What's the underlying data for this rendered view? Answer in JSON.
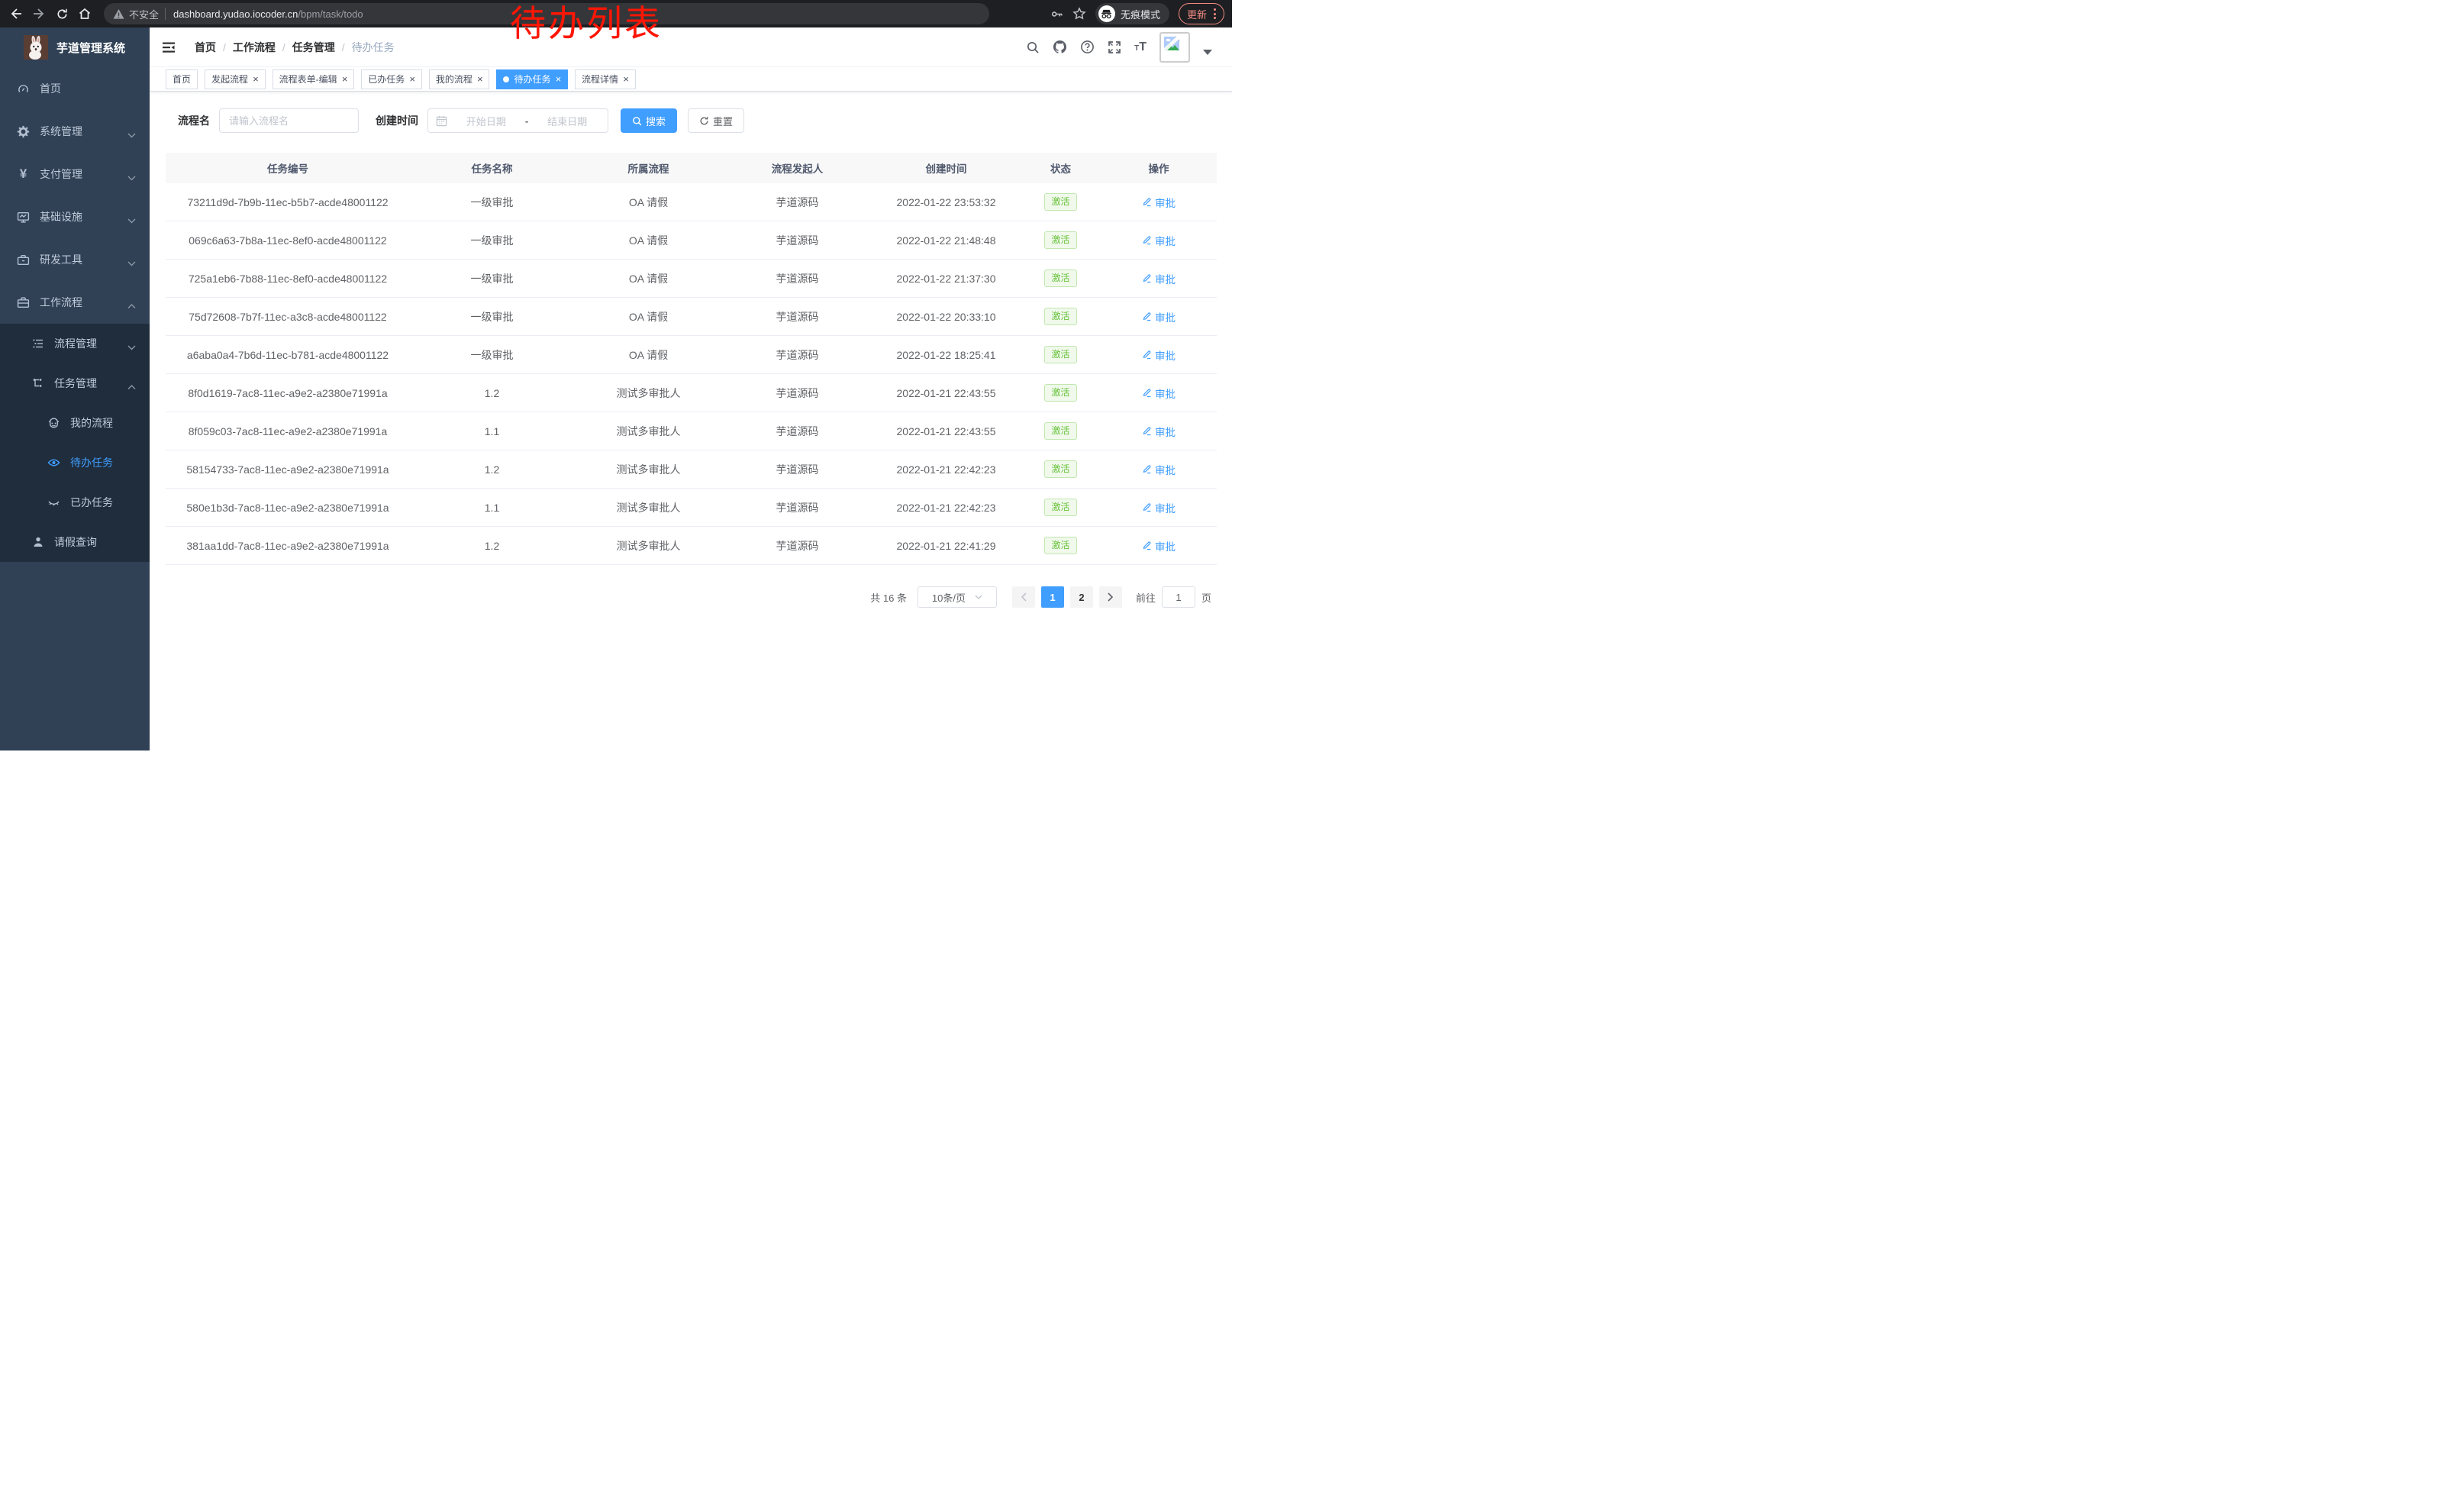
{
  "annotation": "待办列表",
  "browser": {
    "security_label": "不安全",
    "url_host": "dashboard.yudao.iocoder.cn",
    "url_path": "/bpm/task/todo",
    "incognito_label": "无痕模式",
    "update_label": "更新"
  },
  "sidebar": {
    "title": "芋道管理系统",
    "home": "首页",
    "system": "系统管理",
    "pay": "支付管理",
    "infra": "基础设施",
    "dev": "研发工具",
    "workflow": "工作流程",
    "process_mgmt": "流程管理",
    "task_mgmt": "任务管理",
    "my_process": "我的流程",
    "todo": "待办任务",
    "done": "已办任务",
    "leave": "请假查询"
  },
  "navbar": {
    "breadcrumb": [
      "首页",
      "工作流程",
      "任务管理",
      "待办任务"
    ]
  },
  "tabs": [
    {
      "label": "首页",
      "closable": false,
      "active": false
    },
    {
      "label": "发起流程",
      "closable": true,
      "active": false
    },
    {
      "label": "流程表单-编辑",
      "closable": true,
      "active": false
    },
    {
      "label": "已办任务",
      "closable": true,
      "active": false
    },
    {
      "label": "我的流程",
      "closable": true,
      "active": false
    },
    {
      "label": "待办任务",
      "closable": true,
      "active": true
    },
    {
      "label": "流程详情",
      "closable": true,
      "active": false
    }
  ],
  "filters": {
    "name_label": "流程名",
    "name_placeholder": "请输入流程名",
    "time_label": "创建时间",
    "start_placeholder": "开始日期",
    "range_separator": "-",
    "end_placeholder": "结束日期",
    "search_label": "搜索",
    "reset_label": "重置"
  },
  "table": {
    "columns": [
      "任务编号",
      "任务名称",
      "所属流程",
      "流程发起人",
      "创建时间",
      "状态",
      "操作"
    ],
    "action_label": "审批",
    "rows": [
      {
        "id": "73211d9d-7b9b-11ec-b5b7-acde48001122",
        "name": "一级审批",
        "process": "OA 请假",
        "starter": "芋道源码",
        "time": "2022-01-22 23:53:32",
        "status": "激活"
      },
      {
        "id": "069c6a63-7b8a-11ec-8ef0-acde48001122",
        "name": "一级审批",
        "process": "OA 请假",
        "starter": "芋道源码",
        "time": "2022-01-22 21:48:48",
        "status": "激活"
      },
      {
        "id": "725a1eb6-7b88-11ec-8ef0-acde48001122",
        "name": "一级审批",
        "process": "OA 请假",
        "starter": "芋道源码",
        "time": "2022-01-22 21:37:30",
        "status": "激活"
      },
      {
        "id": "75d72608-7b7f-11ec-a3c8-acde48001122",
        "name": "一级审批",
        "process": "OA 请假",
        "starter": "芋道源码",
        "time": "2022-01-22 20:33:10",
        "status": "激活"
      },
      {
        "id": "a6aba0a4-7b6d-11ec-b781-acde48001122",
        "name": "一级审批",
        "process": "OA 请假",
        "starter": "芋道源码",
        "time": "2022-01-22 18:25:41",
        "status": "激活"
      },
      {
        "id": "8f0d1619-7ac8-11ec-a9e2-a2380e71991a",
        "name": "1.2",
        "process": "测试多审批人",
        "starter": "芋道源码",
        "time": "2022-01-21 22:43:55",
        "status": "激活"
      },
      {
        "id": "8f059c03-7ac8-11ec-a9e2-a2380e71991a",
        "name": "1.1",
        "process": "测试多审批人",
        "starter": "芋道源码",
        "time": "2022-01-21 22:43:55",
        "status": "激活"
      },
      {
        "id": "58154733-7ac8-11ec-a9e2-a2380e71991a",
        "name": "1.2",
        "process": "测试多审批人",
        "starter": "芋道源码",
        "time": "2022-01-21 22:42:23",
        "status": "激活"
      },
      {
        "id": "580e1b3d-7ac8-11ec-a9e2-a2380e71991a",
        "name": "1.1",
        "process": "测试多审批人",
        "starter": "芋道源码",
        "time": "2022-01-21 22:42:23",
        "status": "激活"
      },
      {
        "id": "381aa1dd-7ac8-11ec-a9e2-a2380e71991a",
        "name": "1.2",
        "process": "测试多审批人",
        "starter": "芋道源码",
        "time": "2022-01-21 22:41:29",
        "status": "激活"
      }
    ]
  },
  "pagination": {
    "total": "共 16 条",
    "page_size": "10条/页",
    "pages": [
      "1",
      "2"
    ],
    "active_page": "1",
    "goto_label": "前往",
    "goto_value": "1",
    "page_label": "页"
  }
}
